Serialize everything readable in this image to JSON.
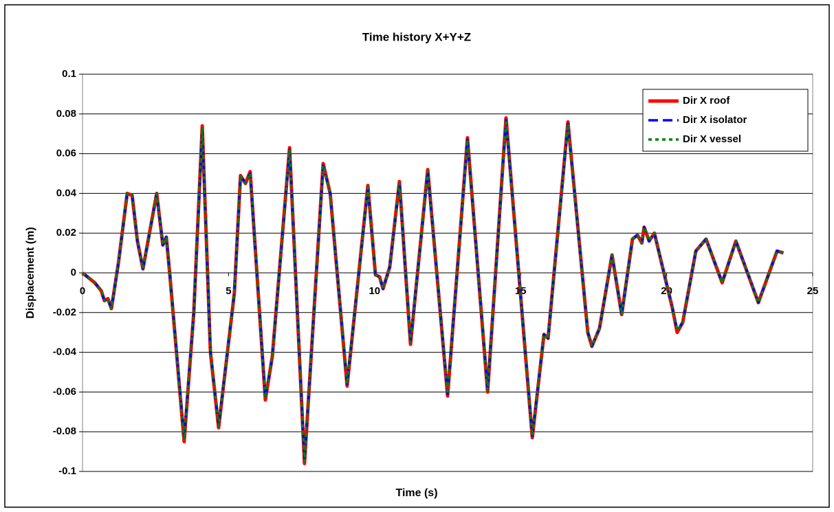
{
  "chart_data": {
    "type": "line",
    "title": "Time history X+Y+Z",
    "xlabel": "Time (s)",
    "ylabel": "Displacement (m)",
    "x": [
      0,
      0.42,
      0.64,
      0.75,
      0.87,
      0.99,
      1.23,
      1.53,
      1.7,
      1.88,
      2.07,
      2.54,
      2.75,
      2.87,
      2.99,
      3.48,
      3.81,
      4.1,
      4.38,
      4.66,
      5.2,
      5.41,
      5.58,
      5.74,
      6.26,
      6.5,
      7.09,
      7.6,
      8.24,
      8.48,
      9.06,
      9.77,
      10.03,
      10.17,
      10.29,
      10.52,
      10.85,
      11.23,
      11.82,
      12.5,
      13.18,
      13.87,
      14.5,
      15.4,
      15.8,
      15.94,
      16.62,
      17.3,
      17.44,
      17.7,
      18.13,
      18.46,
      18.83,
      19.0,
      19.15,
      19.23,
      19.4,
      19.58,
      20.2,
      20.36,
      20.55,
      21.0,
      21.35,
      21.9,
      22.37,
      23.14,
      23.78,
      24.0
    ],
    "series": [
      {
        "name": "Dir X roof",
        "color": "#ff0000",
        "dash": "solid",
        "values": [
          0,
          -0.005,
          -0.009,
          -0.014,
          -0.013,
          -0.018,
          0.005,
          0.04,
          0.039,
          0.016,
          0.002,
          0.04,
          0.014,
          0.018,
          -0.001,
          -0.085,
          -0.02,
          0.074,
          -0.04,
          -0.078,
          -0.01,
          0.049,
          0.045,
          0.051,
          -0.064,
          -0.042,
          0.063,
          -0.096,
          0.055,
          0.04,
          -0.057,
          0.044,
          -0.001,
          -0.002,
          -0.008,
          0.003,
          0.046,
          -0.036,
          0.052,
          -0.062,
          0.068,
          -0.06,
          0.078,
          -0.083,
          -0.031,
          -0.033,
          0.076,
          -0.03,
          -0.037,
          -0.028,
          0.009,
          -0.021,
          0.017,
          0.019,
          0.015,
          0.023,
          0.016,
          0.02,
          -0.018,
          -0.03,
          -0.025,
          0.011,
          0.017,
          -0.005,
          0.016,
          -0.015,
          0.011,
          0.01
        ]
      },
      {
        "name": "Dir X isolator",
        "color": "#0000ff",
        "dash": "dashed",
        "values": [
          0,
          -0.005,
          -0.009,
          -0.014,
          -0.013,
          -0.018,
          0.005,
          0.04,
          0.039,
          0.016,
          0.002,
          0.04,
          0.014,
          0.018,
          -0.001,
          -0.083,
          -0.02,
          0.072,
          -0.04,
          -0.077,
          -0.01,
          0.049,
          0.045,
          0.05,
          -0.063,
          -0.042,
          0.062,
          -0.095,
          0.054,
          0.04,
          -0.056,
          0.043,
          -0.001,
          -0.002,
          -0.008,
          0.003,
          0.045,
          -0.035,
          0.051,
          -0.061,
          0.067,
          -0.059,
          0.077,
          -0.082,
          -0.031,
          -0.033,
          0.075,
          -0.03,
          -0.037,
          -0.028,
          0.009,
          -0.021,
          0.017,
          0.019,
          0.015,
          0.023,
          0.016,
          0.02,
          -0.018,
          -0.029,
          -0.025,
          0.011,
          0.017,
          -0.005,
          0.016,
          -0.015,
          0.011,
          0.01
        ]
      },
      {
        "name": "Dir X vessel",
        "color": "#008000",
        "dash": "dotted",
        "values": [
          0,
          -0.005,
          -0.009,
          -0.014,
          -0.013,
          -0.018,
          0.005,
          0.04,
          0.039,
          0.016,
          0.002,
          0.04,
          0.014,
          0.018,
          -0.001,
          -0.084,
          -0.02,
          0.073,
          -0.04,
          -0.077,
          -0.01,
          0.049,
          0.045,
          0.05,
          -0.063,
          -0.042,
          0.062,
          -0.095,
          0.054,
          0.04,
          -0.056,
          0.043,
          -0.001,
          -0.002,
          -0.008,
          0.003,
          0.045,
          -0.035,
          0.051,
          -0.061,
          0.067,
          -0.059,
          0.077,
          -0.082,
          -0.031,
          -0.033,
          0.075,
          -0.03,
          -0.037,
          -0.028,
          0.009,
          -0.021,
          0.017,
          0.019,
          0.015,
          0.023,
          0.016,
          0.02,
          -0.018,
          -0.029,
          -0.025,
          0.011,
          0.017,
          -0.005,
          0.016,
          -0.015,
          0.011,
          0.01
        ]
      }
    ],
    "xlim": [
      0,
      25
    ],
    "xticks": [
      0,
      5,
      10,
      15,
      20,
      25
    ],
    "ylim": [
      -0.1,
      0.1
    ],
    "yticks": [
      -0.1,
      -0.08,
      -0.06,
      -0.04,
      -0.02,
      0,
      0.02,
      0.04,
      0.06,
      0.08,
      0.1
    ],
    "grid": true,
    "legend": "upper right"
  }
}
